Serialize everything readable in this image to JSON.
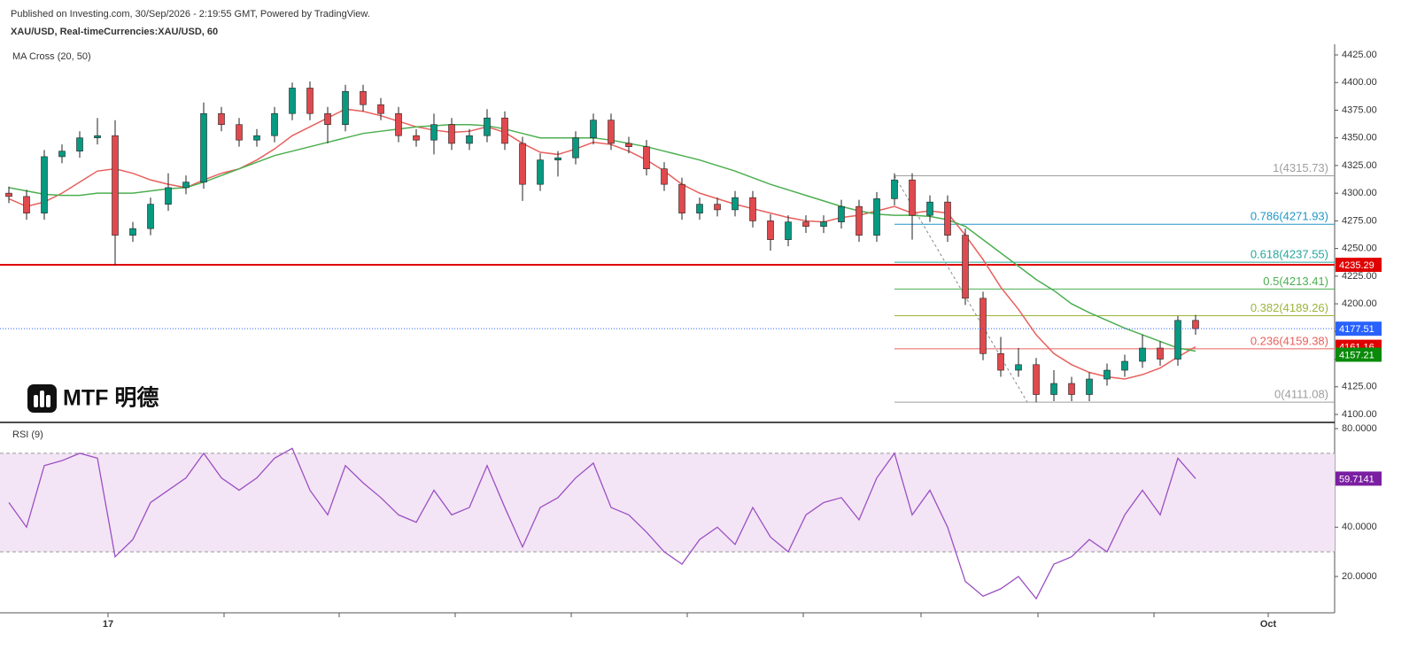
{
  "header": {
    "published": "Published on Investing.com, 30/Sep/2026 - 2:19:55 GMT, Powered by TradingView.",
    "symbol": "XAU/USD, Real-timeCurrencies:XAU/USD, 60"
  },
  "logo": "MTF 明德",
  "chart_data": [
    {
      "type": "candlestick",
      "title": "MA Cross (20, 50)",
      "up_color": "#089981",
      "down_color": "#e0494d",
      "candles": {
        "open": [
          4300,
          4297,
          4282,
          4333,
          4338,
          4350,
          4352,
          4262,
          4268,
          4290,
          4305,
          4310,
          4372,
          4362,
          4348,
          4352,
          4372,
          4395,
          4372,
          4362,
          4392,
          4380,
          4372,
          4352,
          4348,
          4362,
          4345,
          4352,
          4368,
          4345,
          4308,
          4330,
          4332,
          4350,
          4366,
          4345,
          4342,
          4322,
          4308,
          4282,
          4290,
          4285,
          4296,
          4275,
          4258,
          4274,
          4270,
          4274,
          4288,
          4262,
          4295,
          4312,
          4280,
          4292,
          4262,
          4205,
          4155,
          4140,
          4145,
          4118,
          4128,
          4118,
          4132,
          4140,
          4148,
          4160,
          4150,
          4185
        ],
        "high": [
          4306,
          4303,
          4339,
          4344,
          4356,
          4368,
          4366,
          4274,
          4296,
          4318,
          4316,
          4382,
          4378,
          4368,
          4358,
          4378,
          4400,
          4401,
          4378,
          4398,
          4398,
          4386,
          4378,
          4358,
          4372,
          4368,
          4358,
          4376,
          4374,
          4351,
          4336,
          4338,
          4356,
          4372,
          4372,
          4351,
          4348,
          4328,
          4314,
          4296,
          4296,
          4302,
          4302,
          4281,
          4280,
          4280,
          4280,
          4294,
          4294,
          4301,
          4318,
          4318,
          4298,
          4298,
          4268,
          4211,
          4170,
          4160,
          4151,
          4140,
          4134,
          4138,
          4146,
          4154,
          4172,
          4166,
          4189,
          4190
        ],
        "low": [
          4291,
          4276,
          4276,
          4327,
          4332,
          4344,
          4235,
          4256,
          4262,
          4284,
          4299,
          4304,
          4356,
          4342,
          4342,
          4346,
          4366,
          4366,
          4345,
          4356,
          4374,
          4366,
          4346,
          4342,
          4335,
          4339,
          4339,
          4346,
          4339,
          4293,
          4302,
          4315,
          4326,
          4344,
          4339,
          4336,
          4316,
          4302,
          4276,
          4276,
          4279,
          4279,
          4269,
          4248,
          4252,
          4264,
          4264,
          4268,
          4256,
          4256,
          4289,
          4258,
          4274,
          4256,
          4199,
          4149,
          4134,
          4134,
          4111,
          4112,
          4112,
          4112,
          4126,
          4134,
          4142,
          4144,
          4144,
          4172
        ],
        "close": [
          4297,
          4282,
          4333,
          4338,
          4350,
          4352,
          4262,
          4268,
          4290,
          4305,
          4310,
          4372,
          4362,
          4348,
          4352,
          4372,
          4395,
          4372,
          4362,
          4392,
          4380,
          4372,
          4352,
          4348,
          4362,
          4345,
          4352,
          4368,
          4345,
          4308,
          4330,
          4332,
          4350,
          4366,
          4345,
          4342,
          4322,
          4308,
          4282,
          4290,
          4285,
          4296,
          4275,
          4258,
          4274,
          4270,
          4274,
          4288,
          4262,
          4295,
          4312,
          4280,
          4292,
          4262,
          4205,
          4155,
          4140,
          4145,
          4118,
          4128,
          4118,
          4132,
          4140,
          4148,
          4160,
          4150,
          4185,
          4177.51
        ]
      },
      "last_color": "#2962ff",
      "series": [
        {
          "color": "#e8605d",
          "values": [
            4295,
            4288,
            4292,
            4300,
            4310,
            4320,
            4322,
            4318,
            4312,
            4308,
            4305,
            4312,
            4318,
            4322,
            4330,
            4340,
            4352,
            4360,
            4368,
            4376,
            4374,
            4370,
            4365,
            4360,
            4357,
            4355,
            4356,
            4360,
            4355,
            4345,
            4337,
            4335,
            4340,
            4346,
            4344,
            4338,
            4330,
            4320,
            4308,
            4300,
            4295,
            4290,
            4286,
            4282,
            4278,
            4275,
            4274,
            4278,
            4280,
            4284,
            4288,
            4282,
            4284,
            4282,
            4262,
            4240,
            4215,
            4195,
            4172,
            4155,
            4145,
            4138,
            4134,
            4132,
            4136,
            4142,
            4152,
            4161.16
          ],
          "tag_color": "#e00000"
        },
        {
          "color": "#4caf50",
          "values": [
            4305,
            4302,
            4299,
            4298,
            4298,
            4300,
            4300,
            4300,
            4302,
            4304,
            4305,
            4310,
            4316,
            4322,
            4328,
            4334,
            4338,
            4342,
            4346,
            4350,
            4354,
            4356,
            4358,
            4360,
            4361,
            4362,
            4362,
            4361,
            4358,
            4354,
            4350,
            4350,
            4350,
            4350,
            4348,
            4345,
            4342,
            4338,
            4334,
            4330,
            4325,
            4320,
            4314,
            4308,
            4303,
            4298,
            4293,
            4288,
            4284,
            4281,
            4280,
            4280,
            4279,
            4276,
            4270,
            4258,
            4246,
            4234,
            4222,
            4212,
            4200,
            4192,
            4185,
            4178,
            4172,
            4166,
            4160,
            4157.21
          ],
          "tag_color": "#0a8a0a"
        }
      ],
      "hlines": [
        {
          "value": 4235.29,
          "color": "#e00000"
        }
      ],
      "fib": [
        {
          "value": 4315.73,
          "label": "1(4315.73)",
          "color": "#9e9e9e"
        },
        {
          "value": 4271.93,
          "label": "0.786(4271.93)",
          "color": "#2196c8"
        },
        {
          "value": 4237.55,
          "label": "0.618(4237.55)",
          "color": "#26a69a"
        },
        {
          "value": 4213.41,
          "label": "0.5(4213.41)",
          "color": "#4caf50"
        },
        {
          "value": 4189.26,
          "label": "0.382(4189.26)",
          "color": "#9ab53a"
        },
        {
          "value": 4159.38,
          "label": "0.236(4159.38)",
          "color": "#e8605d"
        },
        {
          "value": 4111.08,
          "label": "0(4111.08)",
          "color": "#9e9e9e"
        }
      ],
      "xlim": [
        -0.5,
        74.85
      ],
      "ylim": [
        4093.6,
        4434.6
      ],
      "yticks": [
        {
          "value": 4100,
          "label": "4100.00"
        },
        {
          "value": 4125,
          "label": "4125.00"
        },
        {
          "value": 4150,
          "label": "4150.00"
        },
        {
          "value": 4175,
          "label": "4175.00"
        },
        {
          "value": 4200,
          "label": "4200.00"
        },
        {
          "value": 4225,
          "label": "4225.00"
        },
        {
          "value": 4250,
          "label": "4250.00"
        },
        {
          "value": 4275,
          "label": "4275.00"
        },
        {
          "value": 4300,
          "label": "4300.00"
        },
        {
          "value": 4325,
          "label": "4325.00"
        },
        {
          "value": 4350,
          "label": "4350.00"
        },
        {
          "value": 4375,
          "label": "4375.00"
        },
        {
          "value": 4400,
          "label": "4400.00"
        },
        {
          "value": 4425,
          "label": "4425.00"
        }
      ]
    },
    {
      "type": "line",
      "title": "RSI (9)",
      "series": [
        {
          "color": "#9c4fc4",
          "values": [
            50,
            40,
            65,
            67,
            70,
            68,
            28,
            35,
            50,
            55,
            60,
            70,
            60,
            55,
            60,
            68,
            72,
            55,
            45,
            65,
            58,
            52,
            45,
            42,
            55,
            45,
            48,
            65,
            48,
            32,
            48,
            52,
            60,
            66,
            48,
            45,
            38,
            30,
            25,
            35,
            40,
            33,
            48,
            36,
            30,
            45,
            50,
            52,
            43,
            60,
            70,
            45,
            55,
            40,
            18,
            12,
            15,
            20,
            11,
            25,
            28,
            35,
            30,
            45,
            55,
            45,
            68,
            59.7141
          ],
          "tag_color": "#7b1fa2"
        }
      ],
      "band": [
        30,
        70
      ],
      "band_color": "#f3e5f5",
      "xlim": [
        -0.5,
        74.85
      ],
      "ylim": [
        5.26,
        82.16
      ],
      "yticks": [
        {
          "value": 20,
          "label": "20.0000"
        },
        {
          "value": 40,
          "label": "40.0000"
        },
        {
          "value": 80,
          "label": "80.0000"
        }
      ],
      "xticks": [
        {
          "value": 5.6,
          "label": "17"
        },
        {
          "value": 71.1,
          "label": "Oct"
        }
      ],
      "minor_xticks": [
        12.15,
        18.65,
        25.2,
        31.75,
        38.3,
        44.85,
        51.5,
        58.1,
        64.65
      ]
    }
  ]
}
